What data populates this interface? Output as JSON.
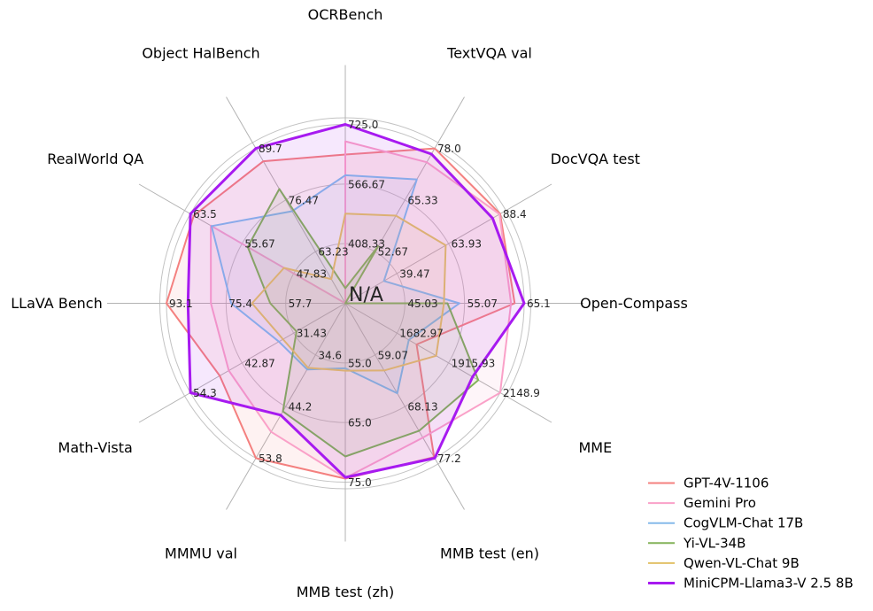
{
  "figure": {
    "background_color": "#ffffff",
    "grid_color": "#c3c3c3",
    "spoke_color": "#b3b3b3",
    "tick_text_color": "#262626",
    "label_text_color": "#000000"
  },
  "chart_data": {
    "type": "radar",
    "title": "",
    "center_label": "N/A",
    "legend_position": "lower right",
    "grid": "on",
    "note": "Each axis is scaled independently: center = axis minimum (shown as N/A), outer ring = axis maximum. Ring tick labels are at 1/3, 2/3 and 3/3 of the radius. Null values (missing scores) are drawn at the center.",
    "axes": [
      {
        "label": "OCRBench",
        "angle_deg": 90,
        "min": 250,
        "max": 725,
        "tick_labels": [
          "408.33",
          "566.67",
          "725.0"
        ]
      },
      {
        "label": "TextVQA val",
        "angle_deg": 60,
        "min": 40,
        "max": 78,
        "tick_labels": [
          "52.67",
          "65.33",
          "78.0"
        ]
      },
      {
        "label": "DocVQA test",
        "angle_deg": 30,
        "min": 15,
        "max": 88.4,
        "tick_labels": [
          "39.47",
          "63.93",
          "88.4"
        ]
      },
      {
        "label": "Open-Compass",
        "angle_deg": 0,
        "min": 35,
        "max": 65.1,
        "tick_labels": [
          "45.03",
          "55.07",
          "65.1"
        ]
      },
      {
        "label": "MME",
        "angle_deg": -30,
        "min": 1450,
        "max": 2148.9,
        "tick_labels": [
          "1682.97",
          "1915.93",
          "2148.9"
        ]
      },
      {
        "label": "MMB test (en)",
        "angle_deg": -60,
        "min": 50,
        "max": 77.2,
        "tick_labels": [
          "59.07",
          "68.13",
          "77.2"
        ]
      },
      {
        "label": "MMB test (zh)",
        "angle_deg": -90,
        "min": 45,
        "max": 75,
        "tick_labels": [
          "55.0",
          "65.0",
          "75.0"
        ]
      },
      {
        "label": "MMMU val",
        "angle_deg": -120,
        "min": 25,
        "max": 53.8,
        "tick_labels": [
          "34.6",
          "44.2",
          "53.8"
        ]
      },
      {
        "label": "Math-Vista",
        "angle_deg": -150,
        "min": 20,
        "max": 54.3,
        "tick_labels": [
          "31.43",
          "42.87",
          "54.3"
        ]
      },
      {
        "label": "LLaVA Bench",
        "angle_deg": 180,
        "min": 40,
        "max": 93.1,
        "tick_labels": [
          "57.7",
          "75.4",
          "93.1"
        ]
      },
      {
        "label": "RealWorld QA",
        "angle_deg": 150,
        "min": 40,
        "max": 63.5,
        "tick_labels": [
          "47.83",
          "55.67",
          "63.5"
        ]
      },
      {
        "label": "Object HalBench",
        "angle_deg": 120,
        "min": 50,
        "max": 89.7,
        "tick_labels": [
          "63.23",
          "76.47",
          "89.7"
        ]
      }
    ],
    "series": [
      {
        "name": "GPT-4V-1106",
        "color": "#f4807f",
        "stroke_width": 2,
        "values": [
          645,
          78.0,
          88.4,
          63.5,
          1771.5,
          77.0,
          74.4,
          53.8,
          47.8,
          93.1,
          63.0,
          86.4
        ]
      },
      {
        "name": "Gemini Pro",
        "color": "#faa1c8",
        "stroke_width": 2,
        "values": [
          680,
          74.6,
          88.1,
          62.9,
          2148.9,
          73.6,
          74.3,
          48.9,
          45.8,
          79.9,
          60.4,
          null
        ]
      },
      {
        "name": "CogVLM-Chat 17B",
        "color": "#86baea",
        "stroke_width": 2,
        "values": [
          590,
          70.4,
          33.3,
          54.2,
          1736.6,
          65.8,
          55.9,
          37.3,
          34.7,
          73.9,
          60.3,
          73.6
        ]
      },
      {
        "name": "Yi-VL-34B",
        "color": "#83b259",
        "stroke_width": 2,
        "values": [
          290,
          54.0,
          null,
          52.2,
          2050.2,
          72.4,
          70.7,
          45.1,
          30.8,
          62.3,
          54.8,
          79.3
        ]
      },
      {
        "name": "Qwen-VL-Chat 9B",
        "color": "#e2c167",
        "stroke_width": 2,
        "values": [
          488,
          61.5,
          62.6,
          51.6,
          1860.0,
          61.8,
          56.3,
          37.0,
          33.8,
          67.7,
          49.3,
          56.2
        ]
      },
      {
        "name": "MiniCPM-Llama3-V 2.5 8B",
        "color": "#a71af0",
        "stroke_width": 3,
        "values": [
          725,
          76.6,
          84.8,
          65.1,
          2024.6,
          77.2,
          74.2,
          45.8,
          54.3,
          86.7,
          63.5,
          89.7
        ]
      }
    ]
  }
}
